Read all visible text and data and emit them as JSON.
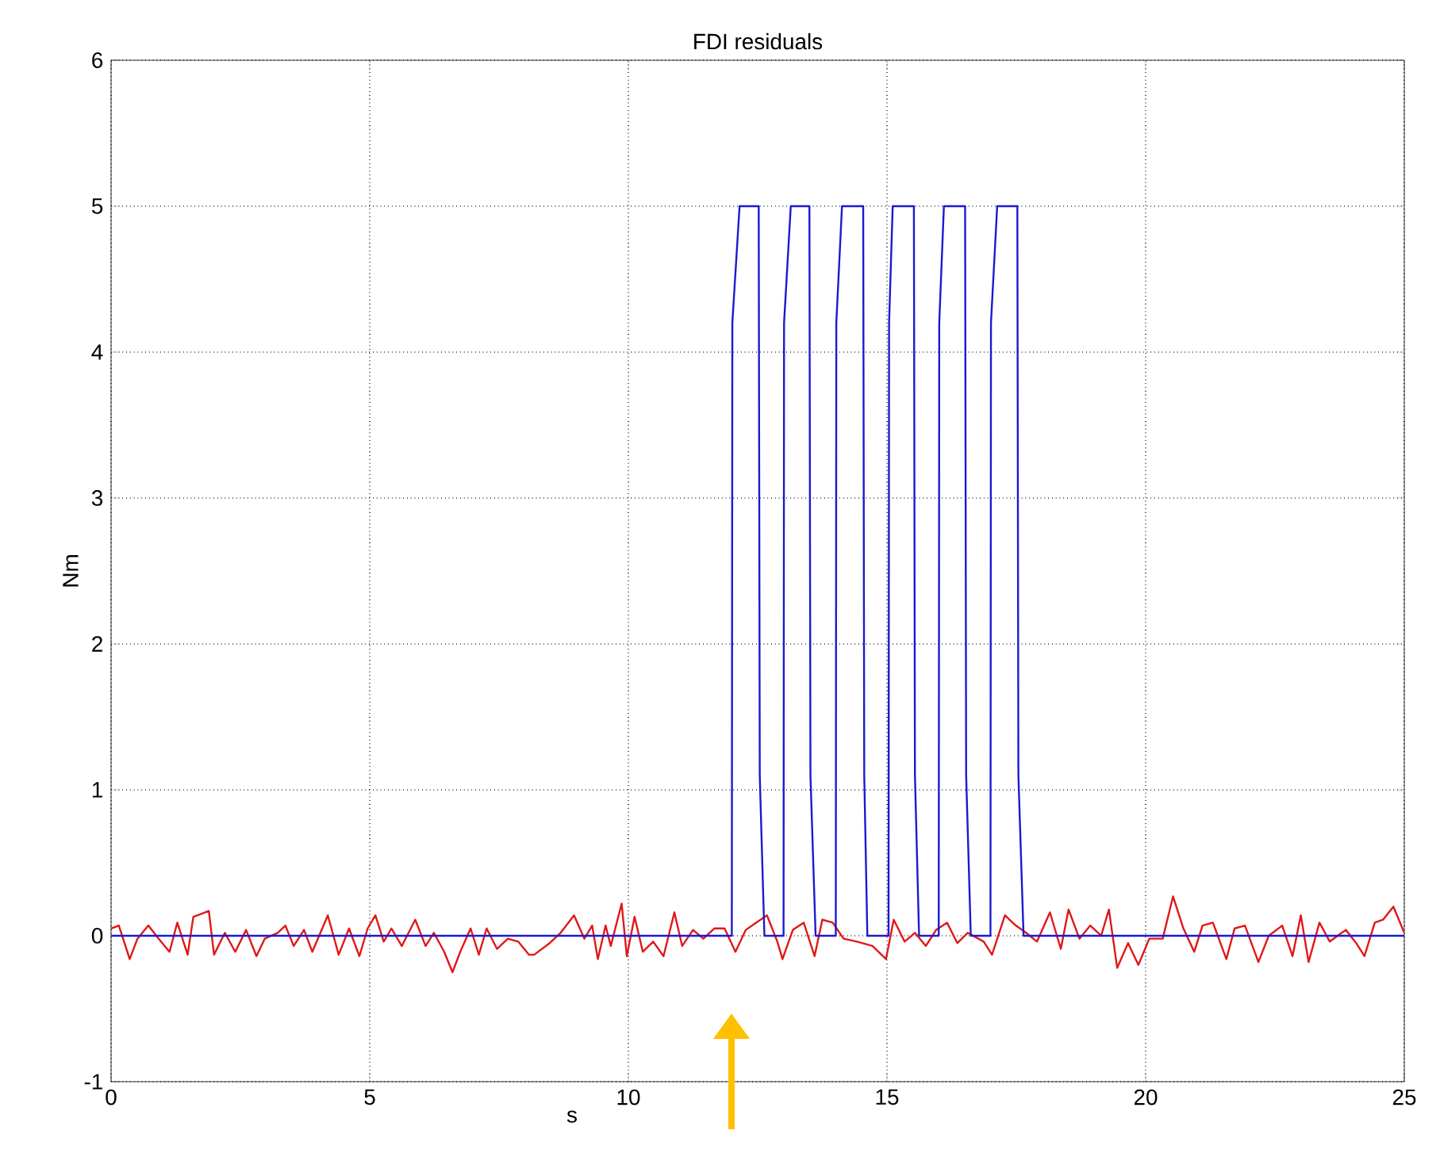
{
  "chart_data": {
    "type": "line",
    "title": "FDI residuals",
    "xlabel": "s",
    "ylabel": "Nm",
    "xlim": [
      0,
      25
    ],
    "ylim": [
      -1,
      6
    ],
    "xticks": [
      0,
      5,
      10,
      15,
      20,
      25
    ],
    "yticks": [
      -1,
      0,
      1,
      2,
      3,
      4,
      5,
      6
    ],
    "grid": true,
    "line_style": "solid",
    "marker": "none",
    "series": [
      {
        "color": "#e01818",
        "x": [
          0,
          0.15,
          0.36,
          0.51,
          0.72,
          0.92,
          1.13,
          1.28,
          1.48,
          1.59,
          1.89,
          1.99,
          2.2,
          2.4,
          2.61,
          2.81,
          2.97,
          3.22,
          3.37,
          3.53,
          3.73,
          3.89,
          4.19,
          4.4,
          4.6,
          4.8,
          4.96,
          5.11,
          5.27,
          5.42,
          5.62,
          5.88,
          6.08,
          6.24,
          6.44,
          6.6,
          6.75,
          6.95,
          7.11,
          7.26,
          7.46,
          7.67,
          7.87,
          8.08,
          8.18,
          8.48,
          8.69,
          8.95,
          9.15,
          9.3,
          9.41,
          9.56,
          9.66,
          9.87,
          9.97,
          10.12,
          10.28,
          10.48,
          10.68,
          10.89,
          11.04,
          11.25,
          11.45,
          11.66,
          11.86,
          12.07,
          12.27,
          12.47,
          12.68,
          12.88,
          12.98,
          13.18,
          13.39,
          13.6,
          13.75,
          13.95,
          14.16,
          14.42,
          14.72,
          14.98,
          15.13,
          15.34,
          15.54,
          15.75,
          15.95,
          16.16,
          16.36,
          16.56,
          16.87,
          17.03,
          17.28,
          17.49,
          17.69,
          17.9,
          18.15,
          18.36,
          18.51,
          18.72,
          18.93,
          19.14,
          19.29,
          19.45,
          19.66,
          19.86,
          20.07,
          20.33,
          20.53,
          20.73,
          20.94,
          21.1,
          21.3,
          21.56,
          21.72,
          21.92,
          22.18,
          22.38,
          22.64,
          22.84,
          23.0,
          23.15,
          23.36,
          23.56,
          23.71,
          23.87,
          24.07,
          24.23,
          24.43,
          24.59,
          24.79,
          25.0
        ],
        "values": [
          0.05,
          0.07,
          -0.16,
          -0.02,
          0.07,
          -0.02,
          -0.11,
          0.09,
          -0.13,
          0.13,
          0.17,
          -0.13,
          0.02,
          -0.11,
          0.04,
          -0.14,
          -0.02,
          0.02,
          0.07,
          -0.07,
          0.04,
          -0.11,
          0.14,
          -0.13,
          0.05,
          -0.14,
          0.05,
          0.14,
          -0.04,
          0.05,
          -0.07,
          0.11,
          -0.07,
          0.02,
          -0.11,
          -0.25,
          -0.11,
          0.05,
          -0.13,
          0.05,
          -0.09,
          -0.02,
          -0.04,
          -0.13,
          -0.13,
          -0.05,
          0.02,
          0.14,
          -0.02,
          0.07,
          -0.16,
          0.07,
          -0.07,
          0.22,
          -0.14,
          0.13,
          -0.11,
          -0.04,
          -0.14,
          0.16,
          -0.07,
          0.04,
          -0.02,
          0.05,
          0.05,
          -0.11,
          0.04,
          0.09,
          0.14,
          -0.04,
          -0.16,
          0.04,
          0.09,
          -0.14,
          0.11,
          0.09,
          -0.02,
          -0.04,
          -0.07,
          -0.16,
          0.11,
          -0.04,
          0.02,
          -0.07,
          0.04,
          0.09,
          -0.05,
          0.02,
          -0.04,
          -0.13,
          0.14,
          0.07,
          0.02,
          -0.04,
          0.16,
          -0.09,
          0.18,
          -0.02,
          0.07,
          0,
          0.18,
          -0.22,
          -0.05,
          -0.2,
          -0.02,
          -0.02,
          0.27,
          0.05,
          -0.11,
          0.07,
          0.09,
          -0.16,
          0.05,
          0.07,
          -0.18,
          0,
          0.07,
          -0.14,
          0.14,
          -0.18,
          0.09,
          -0.04,
          0,
          0.04,
          -0.05,
          -0.14,
          0.09,
          0.11,
          0.2,
          0.02
        ]
      },
      {
        "color": "#1a1ad0",
        "x": [
          0,
          12.0,
          12.01,
          12.15,
          12.52,
          12.54,
          12.63,
          13.0,
          13.01,
          13.14,
          13.5,
          13.52,
          13.62,
          14.01,
          14.02,
          14.13,
          14.54,
          14.56,
          14.62,
          15.03,
          15.04,
          15.11,
          15.52,
          15.54,
          15.62,
          16.0,
          16.01,
          16.1,
          16.51,
          16.53,
          16.62,
          17.0,
          17.01,
          17.13,
          17.52,
          17.54,
          17.64,
          25
        ],
        "values": [
          0,
          0,
          4.2,
          5,
          5,
          1.1,
          0,
          0,
          4.2,
          5,
          5,
          1.1,
          0,
          0,
          4.2,
          5,
          5,
          1.1,
          0,
          0,
          4.2,
          5,
          5,
          1.1,
          0,
          0,
          4.2,
          5,
          5,
          1.1,
          0,
          0,
          4.2,
          5,
          5,
          1.1,
          0,
          0
        ]
      }
    ]
  }
}
